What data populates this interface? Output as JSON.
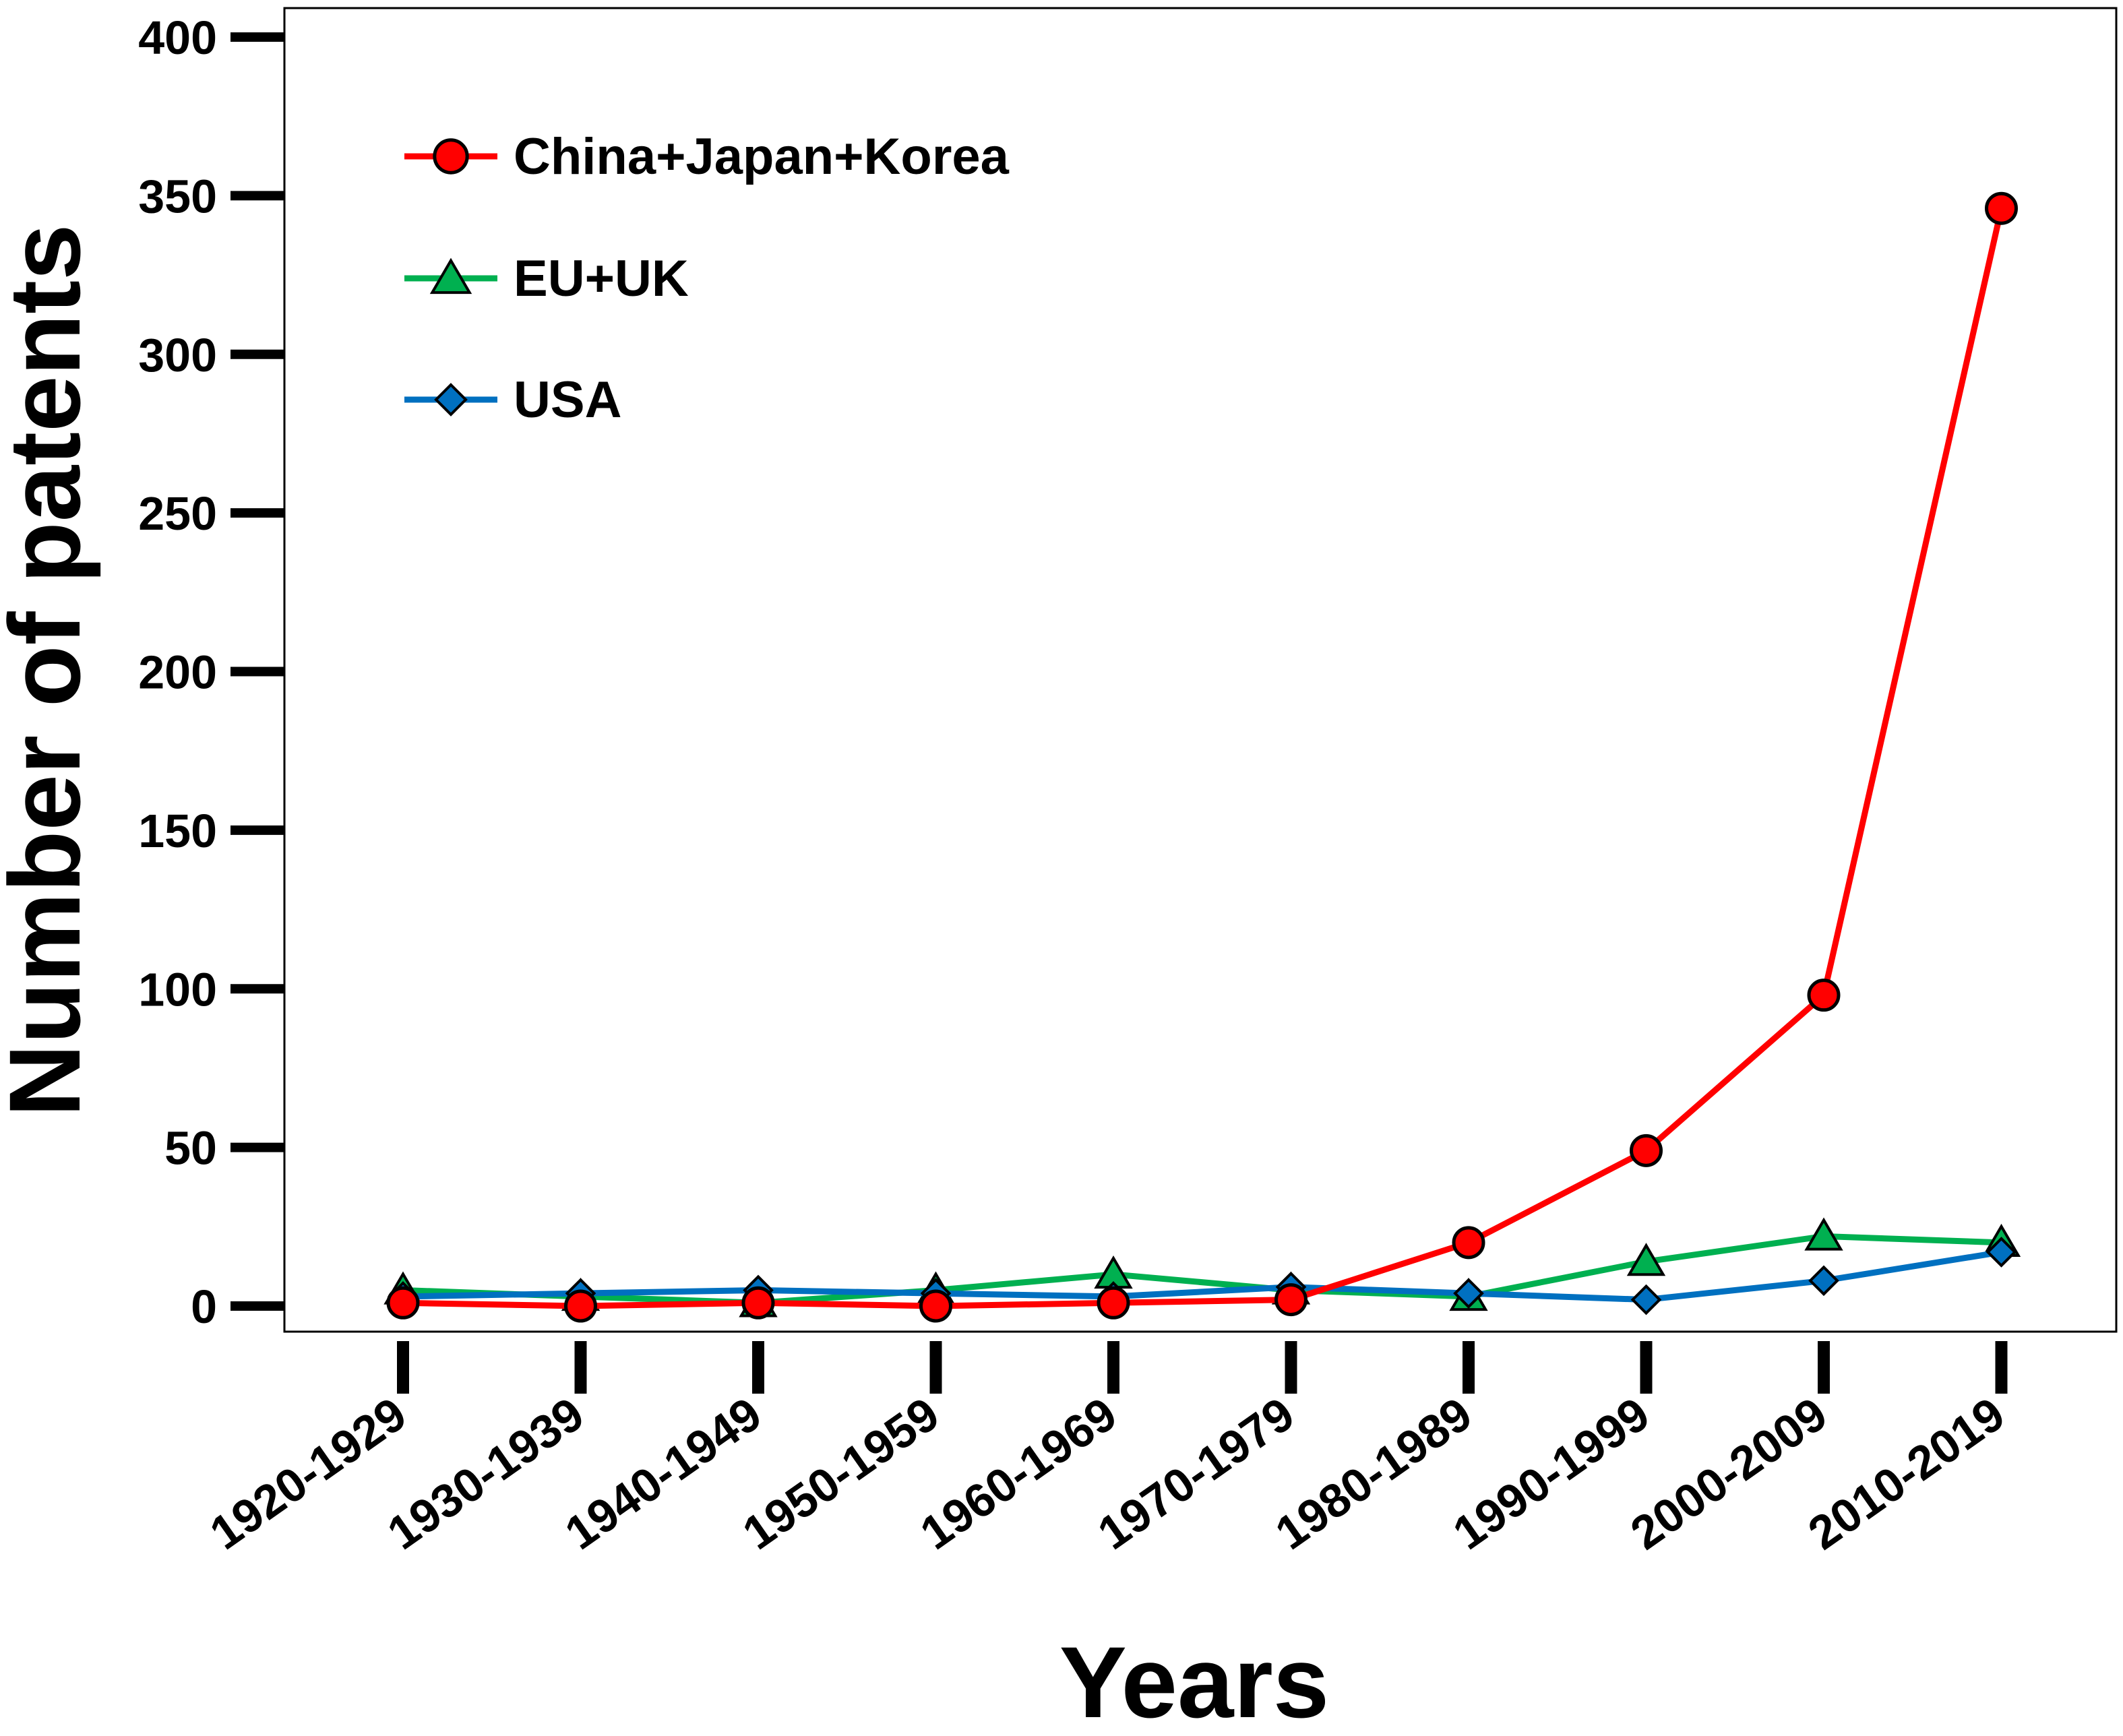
{
  "chart_data": {
    "type": "line",
    "title": "",
    "xlabel": "Years",
    "ylabel": "Number of patents",
    "categories": [
      "1920-1929",
      "1930-1939",
      "1940-1949",
      "1950-1959",
      "1960-1969",
      "1970-1979",
      "1980-1989",
      "1990-1999",
      "2000-2009",
      "2010-2019"
    ],
    "ylim": [
      0,
      400
    ],
    "yticks": [
      0,
      50,
      100,
      150,
      200,
      250,
      300,
      350,
      400
    ],
    "grid": false,
    "legend_position": "top-left",
    "series": [
      {
        "name": "China+Japan+Korea",
        "marker": "circle",
        "color": "#ff0000",
        "values": [
          1,
          0,
          1,
          0,
          1,
          2,
          20,
          49,
          98,
          346
        ]
      },
      {
        "name": "EU+UK",
        "marker": "triangle",
        "color": "#00b050",
        "values": [
          5,
          3,
          1,
          5,
          10,
          5,
          3,
          14,
          22,
          20
        ]
      },
      {
        "name": "USA",
        "marker": "diamond",
        "color": "#0070c0",
        "values": [
          3,
          4,
          5,
          4,
          3,
          6,
          4,
          2,
          8,
          17
        ]
      }
    ]
  }
}
